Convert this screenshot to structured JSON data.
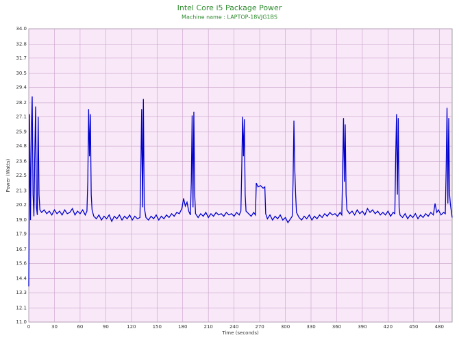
{
  "chart_data": {
    "type": "line",
    "title": "Intel Core i5 Package Power",
    "subtitle": "Machine name : LAPTOP-18VJG1BS",
    "x_label": "Time (seconds)",
    "y_label": "Power (Watts)",
    "xlim": [
      0,
      495
    ],
    "xticks": [
      0,
      30,
      60,
      90,
      120,
      150,
      180,
      210,
      240,
      270,
      300,
      330,
      360,
      390,
      420,
      450,
      480
    ],
    "ylim": [
      11,
      34
    ],
    "yticks": [
      {
        "value": 11,
        "label": "11.0"
      },
      12.1,
      13.3,
      14.4,
      15.6,
      16.7,
      17.9,
      {
        "value": 19,
        "label": "19.0"
      },
      20.2,
      21.3,
      22.5,
      23.6,
      24.8,
      25.9,
      27.1,
      28.2,
      29.4,
      30.5,
      31.7,
      32.8,
      {
        "value": 34,
        "label": "34.0"
      }
    ],
    "grid": true,
    "background": "#f8e8f8",
    "series": [
      {
        "name": "Package Power",
        "color": "#0000cc",
        "x": [
          0,
          0.5,
          1,
          2,
          3,
          4,
          5,
          6,
          7,
          8,
          9,
          10,
          11,
          12,
          13,
          15,
          18,
          21,
          24,
          27,
          30,
          33,
          36,
          39,
          42,
          45,
          48,
          51,
          54,
          57,
          60,
          63,
          66,
          68,
          69,
          70,
          71,
          72,
          73,
          74,
          76,
          79,
          82,
          85,
          88,
          91,
          94,
          97,
          100,
          103,
          106,
          109,
          112,
          115,
          118,
          121,
          124,
          127,
          130,
          131,
          132,
          133,
          134,
          135,
          137,
          140,
          143,
          146,
          149,
          152,
          155,
          158,
          161,
          164,
          167,
          170,
          173,
          176,
          179,
          181,
          183,
          185,
          187,
          189,
          190,
          191,
          192,
          193,
          194,
          195,
          198,
          201,
          204,
          207,
          210,
          213,
          216,
          219,
          222,
          225,
          228,
          231,
          234,
          237,
          240,
          243,
          246,
          248,
          249,
          250,
          251,
          252,
          253,
          254,
          257,
          260,
          263,
          265,
          266,
          268,
          271,
          274,
          276,
          277,
          279,
          282,
          285,
          288,
          291,
          294,
          297,
          300,
          303,
          306,
          308,
          309,
          310,
          311,
          312,
          313,
          316,
          319,
          322,
          325,
          328,
          331,
          334,
          337,
          340,
          343,
          346,
          349,
          352,
          355,
          358,
          361,
          364,
          366,
          367,
          368,
          369,
          370,
          371,
          372,
          375,
          378,
          381,
          384,
          387,
          390,
          393,
          396,
          399,
          402,
          405,
          408,
          411,
          414,
          417,
          420,
          423,
          426,
          428,
          429,
          430,
          431,
          432,
          433,
          434,
          437,
          440,
          443,
          446,
          449,
          452,
          455,
          458,
          461,
          464,
          467,
          470,
          473,
          475,
          477,
          479,
          482,
          485,
          487,
          488,
          489,
          490,
          491,
          492,
          493,
          495
        ],
        "values": [
          13.8,
          20,
          27.3,
          19.0,
          26,
          28.7,
          21,
          19.3,
          24,
          27.9,
          20,
          19.4,
          27.1,
          21,
          19.8,
          19.6,
          19.8,
          19.5,
          19.7,
          19.4,
          19.8,
          19.5,
          19.7,
          19.4,
          19.8,
          19.5,
          19.6,
          19.9,
          19.4,
          19.7,
          19.5,
          19.8,
          19.4,
          19.7,
          22,
          27.7,
          24,
          27.3,
          21,
          19.8,
          19.3,
          19.1,
          19.4,
          19.0,
          19.3,
          19.1,
          19.4,
          18.9,
          19.3,
          19.1,
          19.4,
          19.0,
          19.3,
          19.1,
          19.4,
          19.0,
          19.3,
          19.1,
          19.2,
          23,
          27.7,
          20,
          28.5,
          20,
          19.2,
          19.0,
          19.3,
          19.1,
          19.4,
          19.0,
          19.3,
          19.1,
          19.4,
          19.2,
          19.5,
          19.3,
          19.6,
          19.5,
          19.9,
          20.7,
          20.1,
          20.4,
          19.7,
          19.4,
          22,
          27.2,
          20,
          27.5,
          21,
          19.5,
          19.2,
          19.5,
          19.3,
          19.6,
          19.2,
          19.5,
          19.3,
          19.6,
          19.4,
          19.5,
          19.3,
          19.6,
          19.4,
          19.5,
          19.3,
          19.6,
          19.4,
          19.7,
          23,
          27.1,
          24,
          26.9,
          21,
          19.7,
          19.5,
          19.3,
          19.6,
          19.4,
          21.9,
          21.6,
          21.7,
          21.5,
          21.6,
          19.5,
          19.1,
          19.4,
          19.0,
          19.3,
          19.1,
          19.4,
          19.0,
          19.2,
          18.8,
          19.1,
          19.3,
          22,
          26.8,
          23,
          21,
          19.6,
          19.2,
          19.0,
          19.3,
          19.1,
          19.4,
          19.0,
          19.3,
          19.1,
          19.4,
          19.2,
          19.5,
          19.3,
          19.6,
          19.4,
          19.5,
          19.3,
          19.6,
          19.4,
          23,
          27.0,
          22,
          26.5,
          21,
          19.8,
          19.5,
          19.7,
          19.4,
          19.8,
          19.5,
          19.7,
          19.4,
          19.9,
          19.6,
          19.8,
          19.5,
          19.7,
          19.4,
          19.6,
          19.4,
          19.7,
          19.3,
          19.6,
          19.5,
          24,
          27.3,
          21,
          27.0,
          20,
          19.4,
          19.2,
          19.5,
          19.1,
          19.4,
          19.2,
          19.5,
          19.1,
          19.4,
          19.2,
          19.5,
          19.3,
          19.6,
          19.4,
          20.3,
          19.6,
          19.8,
          19.4,
          19.6,
          19.5,
          23,
          27.8,
          20.3,
          27.0,
          21,
          20.2,
          19.2
        ]
      }
    ]
  }
}
